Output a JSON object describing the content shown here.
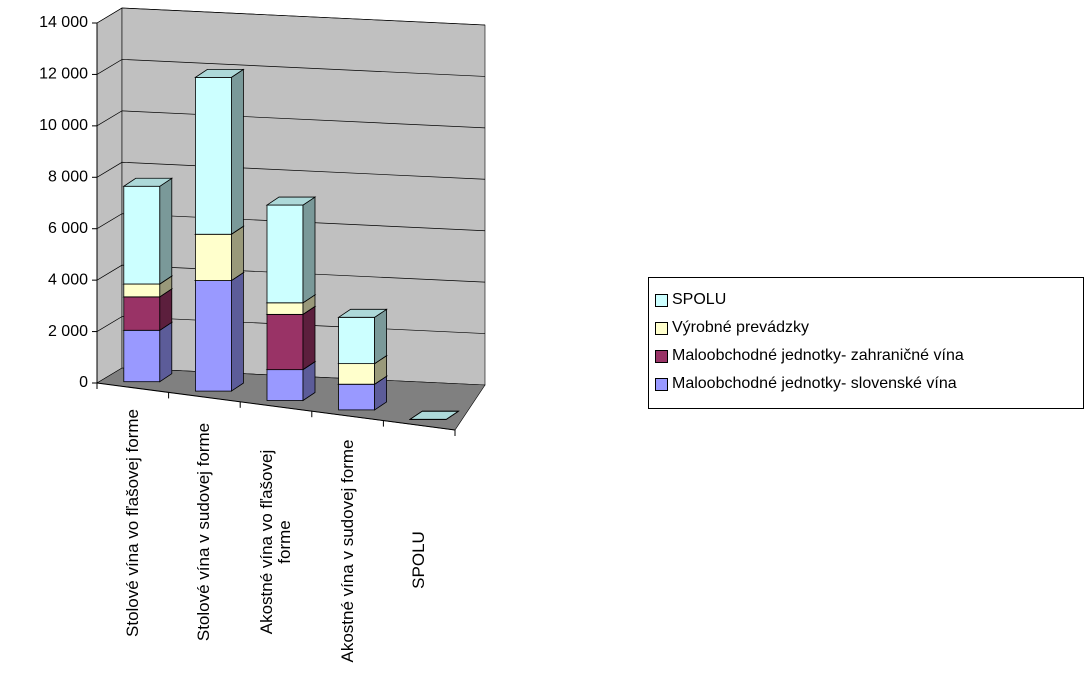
{
  "chart_data": {
    "type": "bar3d_stacked",
    "categories": [
      "Stolové vína vo fľašovej forme",
      "Stolové vína v sudovej forme",
      "Akostné vína  vo fľašovej forme",
      "Akostné vína v sudovej forme",
      "SPOLU"
    ],
    "series": [
      {
        "name": "Maloobchodné jednotky- slovenské vína",
        "color": "#9999ff",
        "values": [
          2000,
          4300,
          1200,
          1000,
          0
        ]
      },
      {
        "name": "Maloobchodné jednotky- zahraničné vína",
        "color": "#993366",
        "values": [
          1300,
          0,
          2150,
          0,
          0
        ]
      },
      {
        "name": "Výrobné prevádzky",
        "color": "#ffffcc",
        "values": [
          500,
          1800,
          450,
          800,
          0
        ]
      },
      {
        "name": "SPOLU",
        "color": "#ccffff",
        "values": [
          3800,
          6100,
          3800,
          1800,
          0
        ]
      }
    ],
    "ylim": [
      0,
      14000
    ],
    "yticks": [
      0,
      {
        "value": 2000,
        "label": "2 000"
      },
      {
        "value": 4000,
        "label": "4 000"
      },
      {
        "value": 6000,
        "label": "6 000"
      },
      {
        "value": 8000,
        "label": "8 000"
      },
      {
        "value": 10000,
        "label": "10 000"
      },
      {
        "value": 12000,
        "label": "12 000"
      },
      {
        "value": 14000,
        "label": "14 000"
      }
    ],
    "grid": true
  }
}
